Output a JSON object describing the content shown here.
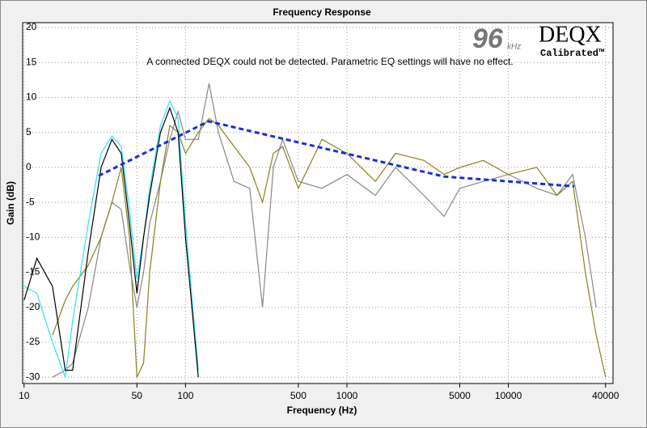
{
  "chart_data": {
    "type": "line",
    "title": "Frequency Response",
    "xlabel": "Frequency (Hz)",
    "ylabel": "Gain (dB)",
    "annotation": "A connected DEQX could not be detected.  Parametric EQ settings will have no effect.",
    "xscale": "log",
    "grid": true,
    "xlim": [
      9.8,
      44500
    ],
    "xticks": [
      10,
      50,
      100,
      500,
      1000,
      5000,
      10000,
      40000
    ],
    "ylim": [
      -30.9,
      20.7
    ],
    "yticks": [
      20,
      15,
      10,
      5,
      0,
      -5,
      -10,
      -15,
      -20,
      -25,
      -30
    ],
    "x": [
      10,
      12,
      15,
      18,
      20,
      25,
      30,
      35,
      40,
      45,
      50,
      55,
      60,
      70,
      80,
      90,
      100,
      120,
      140,
      160,
      200,
      250,
      300,
      350,
      400,
      500,
      700,
      1000,
      1500,
      2000,
      3000,
      4000,
      5000,
      7000,
      10000,
      15000,
      20000,
      25000,
      30000,
      35000,
      40000
    ],
    "series": [
      {
        "color": "#888888",
        "values": [
          null,
          null,
          -30,
          -29,
          -28,
          -20,
          -10,
          -5,
          -6,
          -14,
          -20,
          -15,
          -8,
          -2,
          4,
          8,
          4,
          4,
          12,
          5,
          -2,
          -3,
          -20,
          0,
          4,
          -2,
          -3,
          -1,
          -4,
          0,
          -4,
          -7,
          -3,
          -2,
          -1,
          -3,
          -4,
          -1,
          -10,
          -20,
          null
        ]
      },
      {
        "color": "#8a8020",
        "values": [
          null,
          null,
          -24,
          -19,
          -17,
          -14,
          -10,
          -5,
          0,
          -10,
          -30,
          -28,
          -15,
          -2,
          6,
          5,
          2,
          5,
          7,
          6,
          3,
          0,
          -5,
          2,
          3,
          -3,
          4,
          2,
          -2,
          2,
          1,
          -1,
          0,
          1,
          -1,
          0,
          -4,
          -2,
          -15,
          -24,
          -30
        ]
      },
      {
        "color": "#33e0e8",
        "values": [
          -17,
          -18,
          -25,
          -30,
          -22,
          -8,
          2,
          4.5,
          3,
          -6,
          -16,
          -10,
          -3,
          6,
          9.5,
          7,
          -8,
          -29,
          null,
          null,
          null,
          null,
          null,
          null,
          null,
          null,
          null,
          null,
          null,
          null,
          null,
          null,
          null,
          null,
          null,
          null,
          null,
          null,
          null,
          null,
          null
        ]
      },
      {
        "color": "#000000",
        "values": [
          -19,
          -13,
          -17,
          -29,
          -29,
          -12,
          0,
          4,
          2,
          -8,
          -18,
          -10,
          -4,
          5,
          8.5,
          5,
          -10,
          -30,
          null,
          null,
          null,
          null,
          null,
          null,
          null,
          null,
          null,
          null,
          null,
          null,
          null,
          null,
          null,
          null,
          null,
          null,
          null,
          null,
          null,
          null,
          null
        ]
      },
      {
        "color": "#1a2ed8",
        "dashed": true,
        "x": [
          29,
          139,
          4000,
          25600
        ],
        "values": [
          -1.2,
          6.6,
          -1.3,
          -2.7
        ]
      }
    ]
  },
  "logo": {
    "rate": "96",
    "unit": "kHz",
    "brand": "DEQX",
    "tag": "Calibrated™"
  }
}
